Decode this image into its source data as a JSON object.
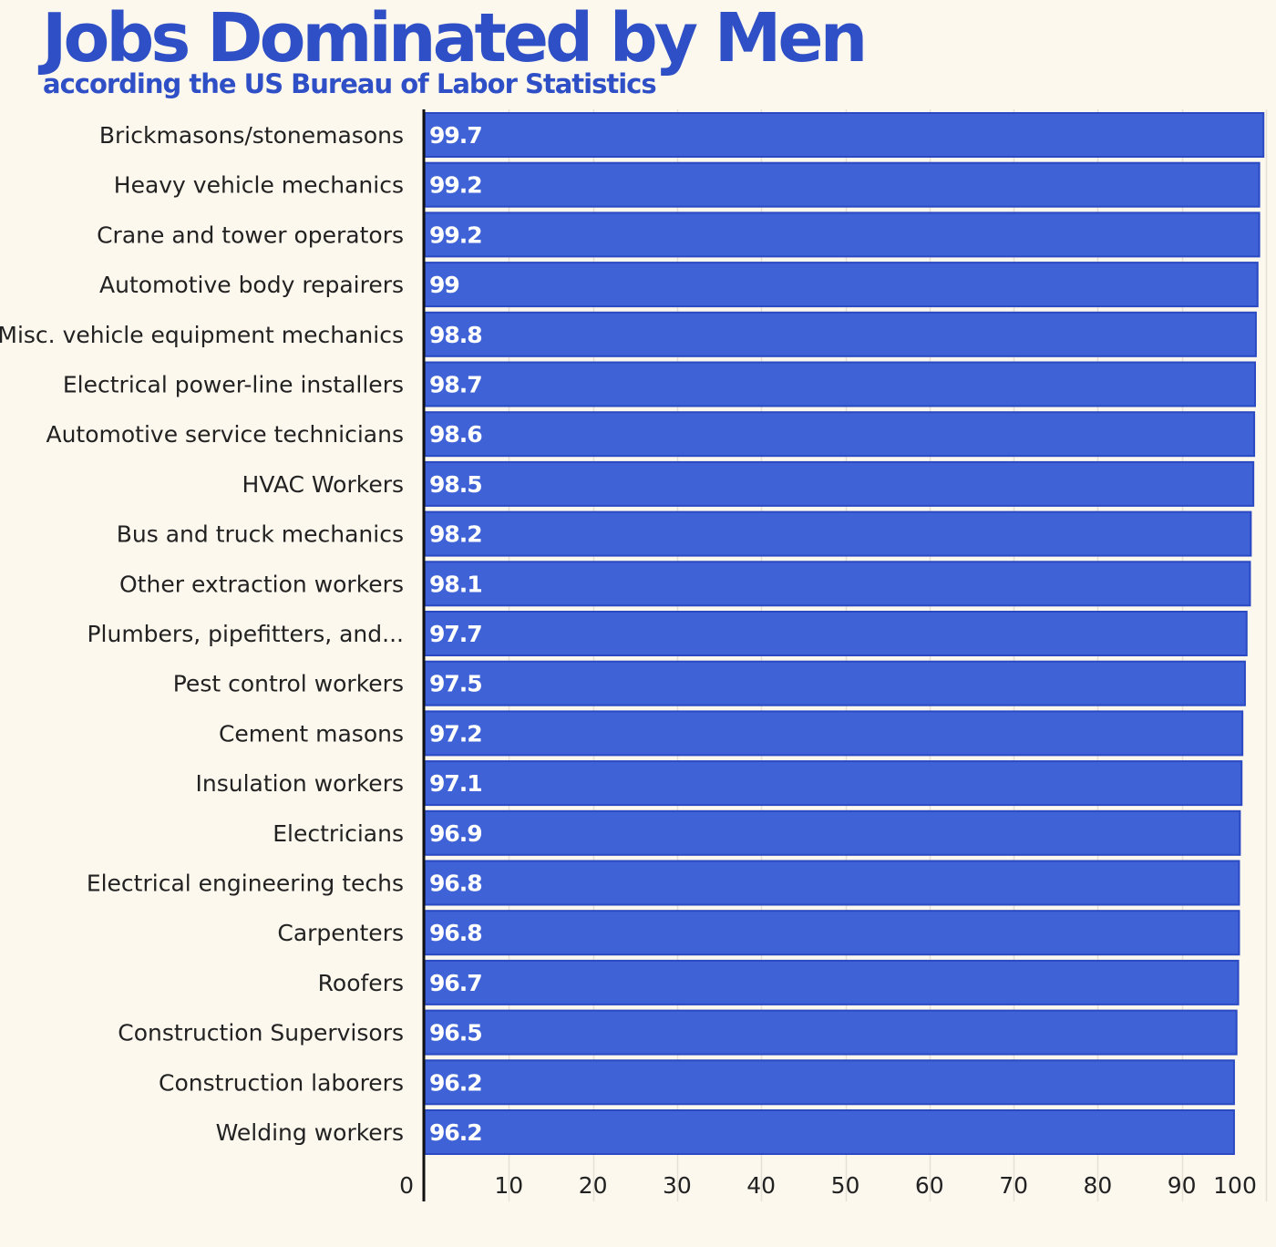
{
  "chart_data": {
    "type": "bar",
    "orientation": "horizontal",
    "title": "Jobs Dominated by Men",
    "subtitle": "according the US Bureau of Labor Statistics",
    "xlim": [
      0,
      100
    ],
    "xticks": [
      0,
      10,
      20,
      30,
      40,
      50,
      60,
      70,
      80,
      90,
      100
    ],
    "grid": true,
    "bar_color": "#3f63d6",
    "categories": [
      "Brickmasons/stonemasons",
      "Heavy vehicle mechanics",
      "Crane and tower operators",
      "Automotive body repairers",
      "Misc. vehicle equipment mechanics",
      "Electrical power-line installers",
      "Automotive service technicians",
      "HVAC Workers",
      "Bus and truck mechanics",
      "Other extraction workers",
      "Plumbers, pipefitters, and...",
      "Pest control workers",
      "Cement masons",
      "Insulation workers",
      "Electricians",
      "Electrical engineering techs",
      "Carpenters",
      "Roofers",
      "Construction Supervisors",
      "Construction laborers",
      "Welding workers"
    ],
    "values": [
      99.7,
      99.2,
      99.2,
      99,
      98.8,
      98.7,
      98.6,
      98.5,
      98.2,
      98.1,
      97.7,
      97.5,
      97.2,
      97.1,
      96.9,
      96.8,
      96.8,
      96.7,
      96.5,
      96.2,
      96.2
    ]
  }
}
